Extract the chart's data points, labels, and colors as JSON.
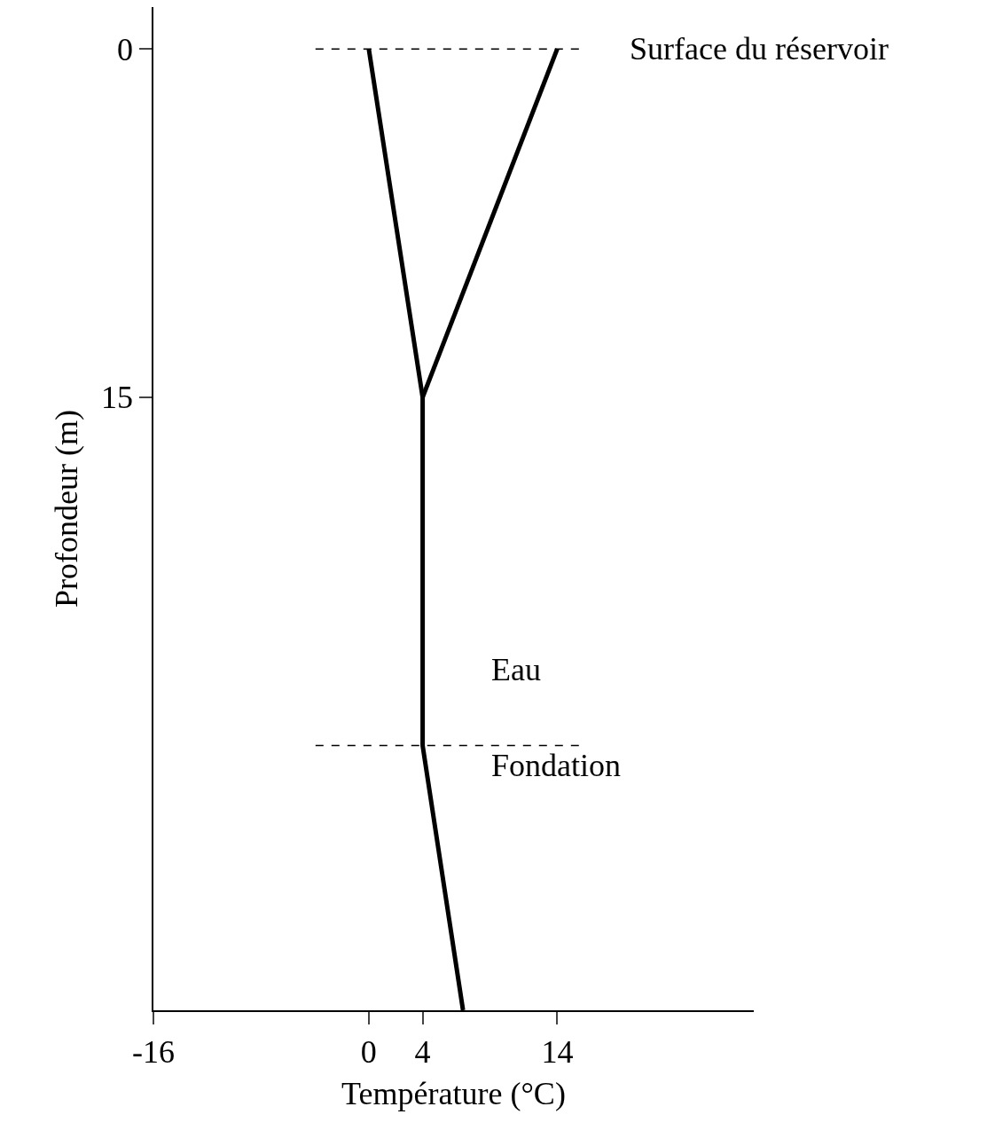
{
  "chart_data": {
    "type": "line",
    "xlabel": "Température (°C)",
    "ylabel": "Profondeur (m)",
    "series": [
      {
        "color": "#000000",
        "x": [
          0,
          4,
          4,
          7
        ],
        "values": [
          0,
          15,
          30,
          41.4
        ]
      },
      {
        "color": "#000000",
        "x": [
          14,
          4
        ],
        "values": [
          0,
          15
        ]
      }
    ],
    "xlim": [
      -16,
      28.6
    ],
    "xticks": [
      -16,
      0,
      4,
      14
    ],
    "ylim": [
      41.4,
      -1.8
    ],
    "yticks": [
      0,
      15
    ],
    "grid": false,
    "marker": "none",
    "line_style": "solid",
    "ref_lines": [
      {
        "axis": "y",
        "value": 0,
        "label": "Surface du réservoir",
        "color": "#000000",
        "line_style": "dashed"
      },
      {
        "axis": "y",
        "value": 30,
        "label": null,
        "color": "#000000",
        "line_style": "dashed"
      }
    ],
    "annotations": [
      "Eau",
      "Fondation"
    ]
  }
}
